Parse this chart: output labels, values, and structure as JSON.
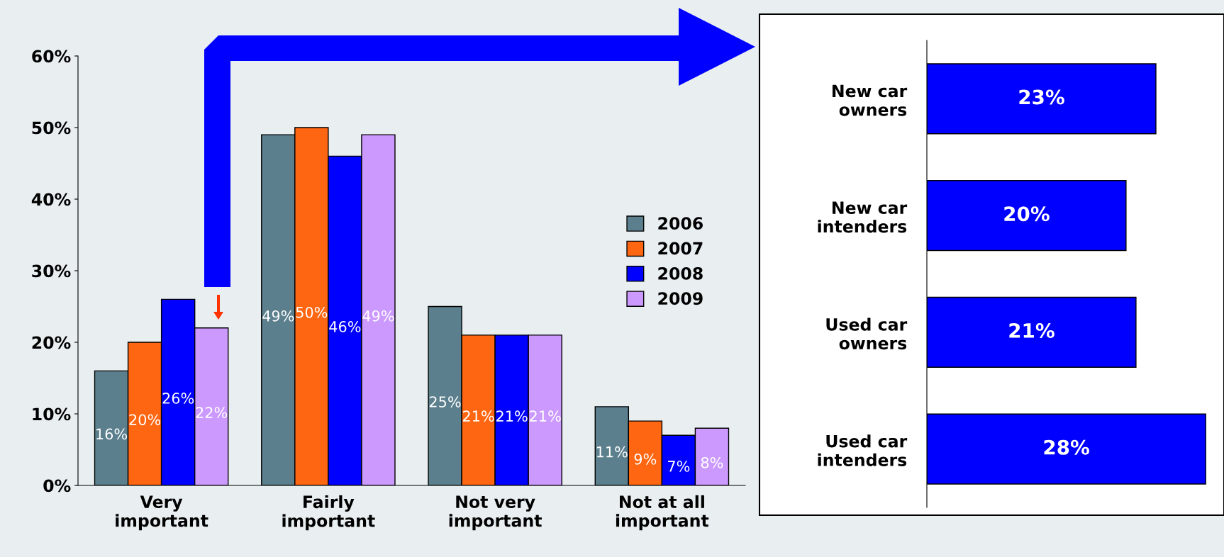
{
  "chart_data": [
    {
      "type": "bar",
      "categories": [
        "Very\nimportant",
        "Fairly\nimportant",
        "Not very\nimportant",
        "Not at all\nimportant"
      ],
      "series": [
        {
          "name": "2006",
          "color": "#5b7f8c",
          "values": [
            16,
            49,
            25,
            11
          ],
          "value_labels": [
            "16%",
            "49%",
            "25%",
            "11%"
          ]
        },
        {
          "name": "2007",
          "color": "#ff6611",
          "values": [
            20,
            50,
            21,
            9
          ],
          "value_labels": [
            "20%",
            "50%",
            "21%",
            "9%"
          ]
        },
        {
          "name": "2008",
          "color": "#0000ff",
          "values": [
            26,
            46,
            21,
            7
          ],
          "value_labels": [
            "26%",
            "46%",
            "21%",
            "7%"
          ]
        },
        {
          "name": "2009",
          "color": "#cc99ff",
          "values": [
            22,
            49,
            21,
            8
          ],
          "value_labels": [
            "22%",
            "49%",
            "21%",
            "8%"
          ]
        }
      ],
      "ylim": [
        0,
        60
      ],
      "yticks": [
        {
          "value": 0,
          "label": "0%"
        },
        {
          "value": 10,
          "label": "10%"
        },
        {
          "value": 20,
          "label": "20%"
        },
        {
          "value": 30,
          "label": "30%"
        },
        {
          "value": 40,
          "label": "40%"
        },
        {
          "value": 50,
          "label": "50%"
        },
        {
          "value": 60,
          "label": "60%"
        }
      ],
      "grid": false,
      "legend": "right"
    },
    {
      "type": "bar",
      "orientation": "horizontal",
      "categories": [
        "New car\nowners",
        "New car\nintenders",
        "Used car\nowners",
        "Used car\nintenders"
      ],
      "values": [
        23,
        20,
        21,
        28
      ],
      "color": "#0000ff",
      "value_labels": [
        "23%",
        "20%",
        "21%",
        "28%"
      ],
      "grid": false,
      "legend": false
    }
  ]
}
